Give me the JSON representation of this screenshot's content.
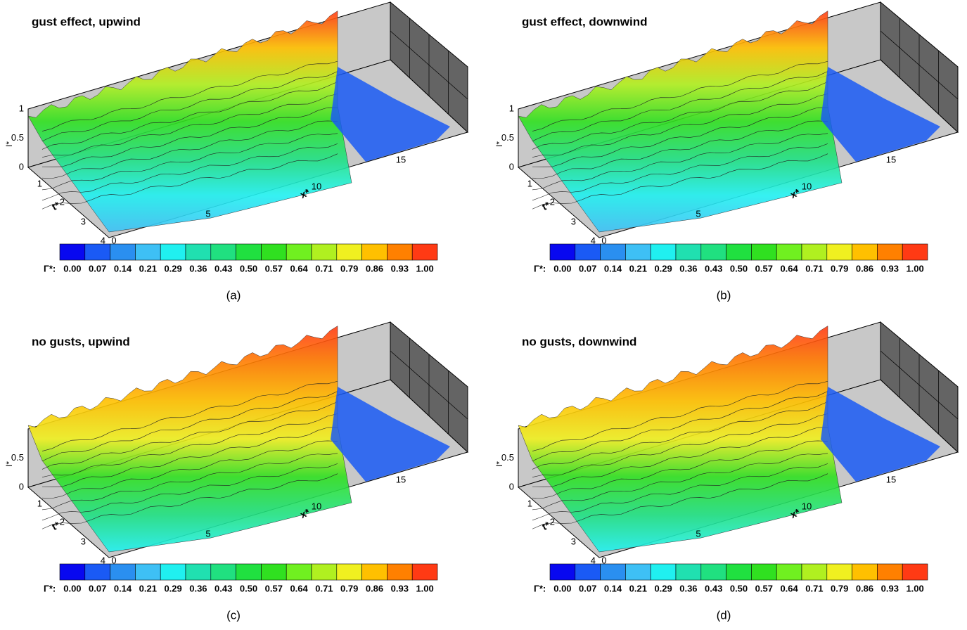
{
  "panels": [
    {
      "title": "gust effect, upwind",
      "caption": "(a)",
      "x_label": "x*",
      "t_label": "t*",
      "i_label": "I*",
      "x_ticks": [
        "0",
        "5",
        "10",
        "15"
      ],
      "t_ticks": [
        "1",
        "2",
        "3",
        "4"
      ],
      "i_ticks": [
        "0",
        "0.5",
        "1"
      ]
    },
    {
      "title": "gust effect, downwind",
      "caption": "(b)",
      "x_label": "x*",
      "t_label": "t*",
      "i_label": "I*",
      "x_ticks": [
        "0",
        "5",
        "10",
        "15"
      ],
      "t_ticks": [
        "1",
        "2",
        "3",
        "4"
      ],
      "i_ticks": [
        "0",
        "0.5",
        "1"
      ]
    },
    {
      "title": "no gusts, upwind",
      "caption": "(c)",
      "x_label": "x*",
      "t_label": "t*",
      "i_label": "I*",
      "x_ticks": [
        "0",
        "5",
        "10",
        "15"
      ],
      "t_ticks": [
        "1",
        "2",
        "3",
        "4"
      ],
      "i_ticks": [
        "0",
        "0.5"
      ]
    },
    {
      "title": "no gusts, downwind",
      "caption": "(d)",
      "x_label": "x*",
      "t_label": "t*",
      "i_label": "I*",
      "x_ticks": [
        "0",
        "5",
        "10",
        "15"
      ],
      "t_ticks": [
        "1",
        "2",
        "3",
        "4"
      ],
      "i_ticks": [
        "0",
        "0.5"
      ]
    }
  ],
  "colorbar": {
    "label": "Γ*:",
    "levels": [
      "0.00",
      "0.07",
      "0.14",
      "0.21",
      "0.29",
      "0.36",
      "0.43",
      "0.50",
      "0.57",
      "0.64",
      "0.71",
      "0.79",
      "0.86",
      "0.93",
      "1.00"
    ],
    "colors": [
      "#0808f0",
      "#1a5af5",
      "#2a8ff0",
      "#3ec0f5",
      "#20f0f0",
      "#20e0b0",
      "#20e080",
      "#20e040",
      "#30e020",
      "#70f020",
      "#b0f020",
      "#f0f020",
      "#ffc000",
      "#ff8000",
      "#ff3a14"
    ]
  }
}
